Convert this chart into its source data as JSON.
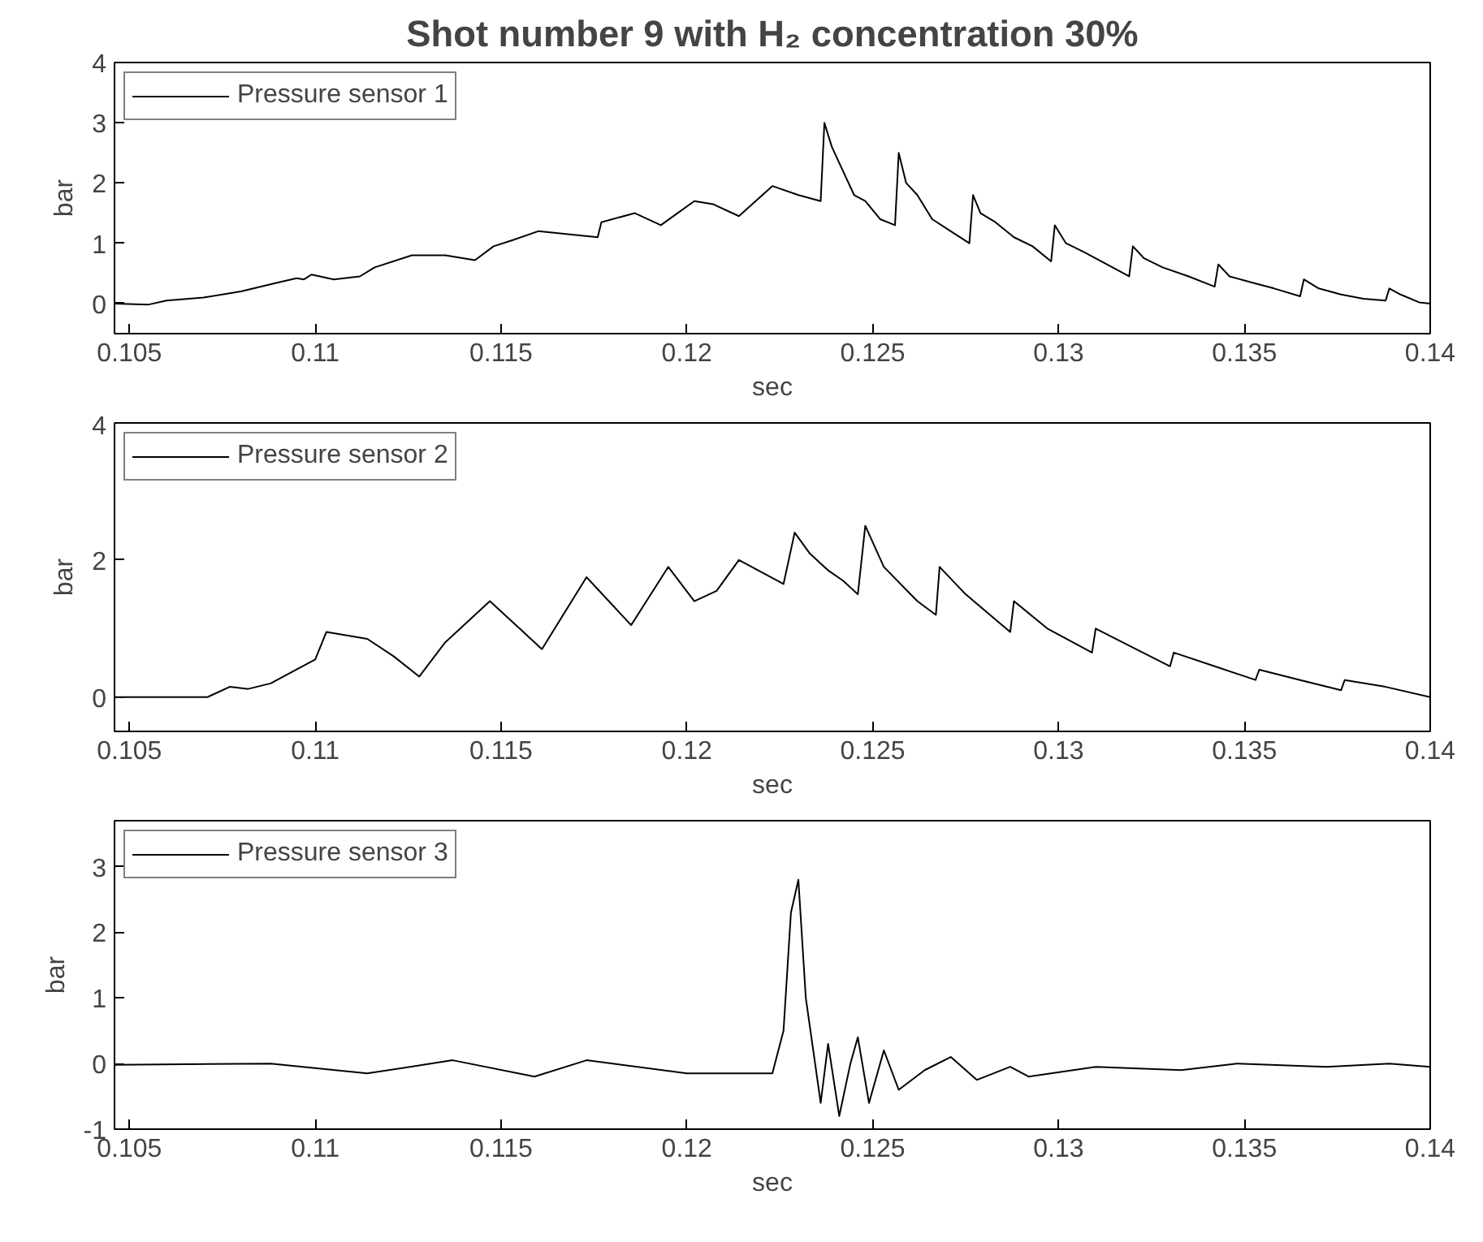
{
  "chart_data": [
    {
      "type": "line",
      "title": "Shot number 9 with H₂ concentration 30%",
      "xlabel": "sec",
      "ylabel": "bar",
      "xlim": [
        0.1046,
        0.14
      ],
      "ylim": [
        -0.5,
        4
      ],
      "xticks": [
        0.105,
        0.11,
        0.115,
        0.12,
        0.125,
        0.13,
        0.135,
        0.14
      ],
      "yticks": [
        0,
        1,
        2,
        3,
        4
      ],
      "grid": false,
      "legend": "top left",
      "x": [
        0.1046,
        0.1055,
        0.106,
        0.107,
        0.108,
        0.109,
        0.1095,
        0.1097,
        0.1099,
        0.1105,
        0.1112,
        0.1116,
        0.1126,
        0.1135,
        0.1143,
        0.1148,
        0.1153,
        0.116,
        0.1168,
        0.1176,
        0.1177,
        0.1186,
        0.1193,
        0.1202,
        0.1207,
        0.1214,
        0.1223,
        0.123,
        0.1236,
        0.1237,
        0.1239,
        0.1242,
        0.1245,
        0.1248,
        0.1252,
        0.1256,
        0.1257,
        0.1259,
        0.1262,
        0.1266,
        0.1271,
        0.1276,
        0.1277,
        0.1279,
        0.1283,
        0.1288,
        0.1293,
        0.1298,
        0.1299,
        0.1302,
        0.1307,
        0.1313,
        0.1319,
        0.132,
        0.1323,
        0.1328,
        0.1335,
        0.1342,
        0.1343,
        0.1346,
        0.1352,
        0.1358,
        0.1365,
        0.1366,
        0.137,
        0.1376,
        0.1382,
        0.1388,
        0.1389,
        0.1392,
        0.1397,
        0.14
      ],
      "series": [
        {
          "name": "Pressure sensor 1",
          "color": "#000000",
          "values": [
            0,
            -0.02,
            0.05,
            0.1,
            0.2,
            0.35,
            0.42,
            0.4,
            0.48,
            0.4,
            0.45,
            0.6,
            0.8,
            0.8,
            0.72,
            0.95,
            1.05,
            1.2,
            1.15,
            1.1,
            1.35,
            1.5,
            1.3,
            1.7,
            1.65,
            1.45,
            1.95,
            1.8,
            1.7,
            3.0,
            2.6,
            2.2,
            1.8,
            1.7,
            1.4,
            1.3,
            2.5,
            2.0,
            1.8,
            1.4,
            1.2,
            1.0,
            1.8,
            1.5,
            1.35,
            1.1,
            0.95,
            0.7,
            1.3,
            1.0,
            0.85,
            0.65,
            0.45,
            0.95,
            0.75,
            0.6,
            0.45,
            0.28,
            0.65,
            0.45,
            0.35,
            0.25,
            0.12,
            0.4,
            0.25,
            0.15,
            0.08,
            0.05,
            0.25,
            0.15,
            0.02,
            0.0
          ]
        }
      ]
    },
    {
      "type": "line",
      "xlabel": "sec",
      "ylabel": "bar",
      "xlim": [
        0.1046,
        0.14
      ],
      "ylim": [
        -0.5,
        4
      ],
      "xticks": [
        0.105,
        0.11,
        0.115,
        0.12,
        0.125,
        0.13,
        0.135,
        0.14
      ],
      "yticks": [
        0,
        2,
        4
      ],
      "grid": false,
      "legend": "top left",
      "x": [
        0.1046,
        0.1071,
        0.1077,
        0.1082,
        0.1088,
        0.11,
        0.1103,
        0.1114,
        0.1121,
        0.1128,
        0.1135,
        0.1147,
        0.1155,
        0.1161,
        0.1173,
        0.1185,
        0.1195,
        0.1202,
        0.1208,
        0.1214,
        0.1226,
        0.1229,
        0.1233,
        0.1238,
        0.1242,
        0.1246,
        0.1248,
        0.1253,
        0.1262,
        0.1267,
        0.1268,
        0.1275,
        0.1287,
        0.1288,
        0.1297,
        0.1309,
        0.131,
        0.1319,
        0.133,
        0.1331,
        0.1342,
        0.1353,
        0.1354,
        0.1365,
        0.1376,
        0.1377,
        0.1388,
        0.14
      ],
      "series": [
        {
          "name": "Pressure sensor 2",
          "color": "#000000",
          "values": [
            0,
            0,
            0.15,
            0.12,
            0.2,
            0.55,
            0.95,
            0.85,
            0.6,
            0.3,
            0.8,
            1.4,
            1.0,
            0.7,
            1.75,
            1.05,
            1.9,
            1.4,
            1.55,
            2.0,
            1.65,
            2.4,
            2.1,
            1.85,
            1.7,
            1.5,
            2.5,
            1.9,
            1.4,
            1.2,
            1.9,
            1.5,
            0.95,
            1.4,
            1.0,
            0.65,
            1.0,
            0.75,
            0.45,
            0.65,
            0.45,
            0.25,
            0.4,
            0.25,
            0.1,
            0.25,
            0.15,
            0.0
          ]
        }
      ]
    },
    {
      "type": "line",
      "xlabel": "sec",
      "ylabel": "bar",
      "xlim": [
        0.1046,
        0.14
      ],
      "ylim": [
        -1,
        3.7
      ],
      "xticks": [
        0.105,
        0.11,
        0.115,
        0.12,
        0.125,
        0.13,
        0.135,
        0.14
      ],
      "yticks": [
        -1,
        0,
        1,
        2,
        3
      ],
      "grid": false,
      "legend": "top left",
      "x": [
        0.1046,
        0.1088,
        0.1114,
        0.1137,
        0.1159,
        0.1173,
        0.12,
        0.1223,
        0.1226,
        0.1228,
        0.123,
        0.1232,
        0.1234,
        0.1236,
        0.1238,
        0.1241,
        0.1244,
        0.1246,
        0.1249,
        0.1253,
        0.1257,
        0.1264,
        0.1271,
        0.1278,
        0.1287,
        0.1292,
        0.131,
        0.1333,
        0.1348,
        0.1372,
        0.1389,
        0.14
      ],
      "series": [
        {
          "name": "Pressure sensor 3",
          "color": "#000000",
          "values": [
            -0.02,
            0.0,
            -0.15,
            0.05,
            -0.2,
            0.05,
            -0.15,
            -0.15,
            0.5,
            2.3,
            2.8,
            1.0,
            0.2,
            -0.6,
            0.3,
            -0.8,
            0.0,
            0.4,
            -0.6,
            0.2,
            -0.4,
            -0.1,
            0.1,
            -0.25,
            -0.05,
            -0.2,
            -0.05,
            -0.1,
            0.0,
            -0.05,
            0.0,
            -0.05
          ]
        }
      ]
    }
  ]
}
